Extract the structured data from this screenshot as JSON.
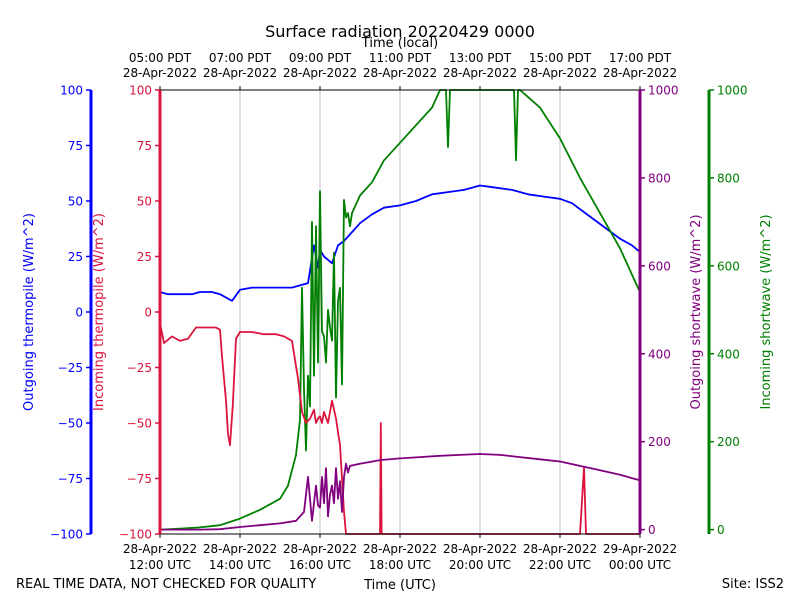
{
  "chart_data": {
    "type": "line",
    "title": "Surface radiation 20220429 0000",
    "top_xlabel": "Time (local)",
    "xlabel": "Time (UTC)",
    "footer_left": "REAL TIME DATA, NOT CHECKED FOR QUALITY",
    "footer_right": "Site: ISS2",
    "x_range_hours_utc": [
      12,
      24
    ],
    "grid_x": true,
    "bottom_ticks": [
      {
        "h": 12,
        "line1": "28-Apr-2022",
        "line2": "12:00 UTC"
      },
      {
        "h": 14,
        "line1": "28-Apr-2022",
        "line2": "14:00 UTC"
      },
      {
        "h": 16,
        "line1": "28-Apr-2022",
        "line2": "16:00 UTC"
      },
      {
        "h": 18,
        "line1": "28-Apr-2022",
        "line2": "18:00 UTC"
      },
      {
        "h": 20,
        "line1": "28-Apr-2022",
        "line2": "20:00 UTC"
      },
      {
        "h": 22,
        "line1": "28-Apr-2022",
        "line2": "22:00 UTC"
      },
      {
        "h": 24,
        "line1": "29-Apr-2022",
        "line2": "00:00 UTC"
      }
    ],
    "top_ticks": [
      {
        "h": 12,
        "line1": "05:00 PDT",
        "line2": "28-Apr-2022"
      },
      {
        "h": 14,
        "line1": "07:00 PDT",
        "line2": "28-Apr-2022"
      },
      {
        "h": 16,
        "line1": "09:00 PDT",
        "line2": "28-Apr-2022"
      },
      {
        "h": 18,
        "line1": "11:00 PDT",
        "line2": "28-Apr-2022"
      },
      {
        "h": 20,
        "line1": "13:00 PDT",
        "line2": "28-Apr-2022"
      },
      {
        "h": 22,
        "line1": "15:00 PDT",
        "line2": "28-Apr-2022"
      },
      {
        "h": 24,
        "line1": "17:00 PDT",
        "line2": "28-Apr-2022"
      }
    ],
    "axes": {
      "out_thermopile": {
        "label": "Outgoing thermopile (W/m^2)",
        "color": "#0000ff",
        "ylim": [
          -100,
          100
        ],
        "ticks": [
          "100",
          "75",
          "50",
          "25",
          "0",
          "−25",
          "−50",
          "−75",
          "−100"
        ]
      },
      "in_thermopile": {
        "label": "Incoming thermopile (W/m^2)",
        "color": "#dc143c",
        "ylim": [
          -100,
          100
        ],
        "ticks": [
          "100",
          "75",
          "50",
          "25",
          "0",
          "−25",
          "−50",
          "−75",
          "−100"
        ]
      },
      "out_shortwave": {
        "label": "Outgoing shortwave (W/m^2)",
        "color": "#800080",
        "ylim": [
          -10,
          1000
        ],
        "ticks": [
          "1000",
          "800",
          "600",
          "400",
          "200",
          "0"
        ]
      },
      "in_shortwave": {
        "label": "Incoming shortwave (W/m^2)",
        "color": "#008000",
        "ylim": [
          -10,
          1000
        ],
        "ticks": [
          "1000",
          "800",
          "600",
          "400",
          "200",
          "0"
        ]
      }
    },
    "series": [
      {
        "name": "Outgoing thermopile",
        "axis": "out_thermopile",
        "color": "#0000ff",
        "x": [
          12.0,
          12.2,
          12.5,
          12.8,
          13.0,
          13.3,
          13.5,
          13.8,
          14.0,
          14.3,
          14.5,
          14.8,
          15.0,
          15.3,
          15.5,
          15.7,
          15.85,
          15.95,
          16.0,
          16.1,
          16.3,
          16.45,
          16.6,
          16.8,
          17.0,
          17.3,
          17.6,
          18.0,
          18.4,
          18.8,
          19.2,
          19.6,
          20.0,
          20.4,
          20.8,
          21.2,
          21.6,
          22.0,
          22.3,
          22.6,
          22.9,
          23.2,
          23.5,
          23.8,
          24.0
        ],
        "y": [
          9,
          8,
          8,
          8,
          9,
          9,
          8,
          5,
          10,
          11,
          11,
          11,
          11,
          11,
          12,
          13,
          30,
          20,
          28,
          25,
          22,
          30,
          32,
          36,
          40,
          44,
          47,
          48,
          50,
          53,
          54,
          55,
          57,
          56,
          55,
          53,
          52,
          51,
          49,
          45,
          41,
          37,
          33,
          30,
          27
        ]
      },
      {
        "name": "Incoming thermopile",
        "axis": "in_thermopile",
        "color": "#dc143c",
        "x": [
          12.0,
          12.1,
          12.3,
          12.5,
          12.7,
          12.9,
          13.0,
          13.2,
          13.4,
          13.5,
          13.55,
          13.65,
          13.7,
          13.75,
          13.82,
          13.9,
          14.0,
          14.3,
          14.6,
          14.9,
          15.1,
          15.3,
          15.45,
          15.55,
          15.65,
          15.75,
          15.85,
          15.9,
          15.95,
          16.0,
          16.05,
          16.1,
          16.2,
          16.3,
          16.4,
          16.5,
          16.6,
          16.65,
          16.75,
          17.0,
          17.3,
          17.5,
          17.52,
          17.54,
          17.6,
          17.8,
          18.0,
          18.5,
          19.0,
          19.5,
          20.0,
          20.5,
          21.0,
          21.5,
          22.0,
          22.5,
          22.6,
          22.65,
          22.7,
          23.0,
          23.5,
          24.0
        ],
        "y": [
          -5,
          -14,
          -11,
          -13,
          -12,
          -7,
          -7,
          -7,
          -7,
          -8,
          -20,
          -40,
          -55,
          -60,
          -42,
          -12,
          -9,
          -9,
          -10,
          -10,
          -11,
          -13,
          -30,
          -45,
          -50,
          -48,
          -44,
          -50,
          -48,
          -47,
          -50,
          -45,
          -50,
          -40,
          -48,
          -60,
          -90,
          -100,
          -100,
          -100,
          -100,
          -100,
          -50,
          -100,
          -100,
          -100,
          -100,
          -100,
          -100,
          -100,
          -100,
          -100,
          -100,
          -100,
          -100,
          -100,
          -70,
          -100,
          -100,
          -100,
          -100,
          -100
        ]
      },
      {
        "name": "Outgoing shortwave",
        "axis": "out_shortwave",
        "color": "#800080",
        "x": [
          12.0,
          12.5,
          13.0,
          13.5,
          14.0,
          14.5,
          15.0,
          15.4,
          15.6,
          15.7,
          15.8,
          15.85,
          15.9,
          15.95,
          16.0,
          16.05,
          16.1,
          16.15,
          16.2,
          16.25,
          16.3,
          16.35,
          16.4,
          16.45,
          16.5,
          16.55,
          16.6,
          16.65,
          16.7,
          16.75,
          17.0,
          17.5,
          18.0,
          18.5,
          19.0,
          19.5,
          20.0,
          20.5,
          21.0,
          21.5,
          22.0,
          22.5,
          23.0,
          23.5,
          24.0
        ],
        "y": [
          0,
          0,
          0,
          1,
          6,
          10,
          14,
          20,
          40,
          120,
          20,
          60,
          100,
          55,
          50,
          120,
          60,
          140,
          30,
          80,
          100,
          60,
          140,
          70,
          110,
          40,
          120,
          150,
          130,
          145,
          150,
          158,
          162,
          165,
          168,
          170,
          172,
          170,
          165,
          160,
          155,
          145,
          135,
          125,
          112
        ]
      },
      {
        "name": "Incoming shortwave",
        "axis": "in_shortwave",
        "color": "#008000",
        "x": [
          12.0,
          12.5,
          13.0,
          13.5,
          14.0,
          14.5,
          15.0,
          15.2,
          15.4,
          15.5,
          15.55,
          15.6,
          15.65,
          15.7,
          15.75,
          15.8,
          15.85,
          15.9,
          15.95,
          16.0,
          16.05,
          16.1,
          16.15,
          16.2,
          16.25,
          16.3,
          16.35,
          16.4,
          16.45,
          16.5,
          16.55,
          16.6,
          16.65,
          16.7,
          16.75,
          16.8,
          17.0,
          17.3,
          17.6,
          18.0,
          18.4,
          18.8,
          19.0,
          19.15,
          19.2,
          19.25,
          19.5,
          20.0,
          20.5,
          20.85,
          20.9,
          20.95,
          21.0,
          21.5,
          22.0,
          22.5,
          23.0,
          23.5,
          24.0
        ],
        "y": [
          0,
          2,
          5,
          10,
          25,
          45,
          70,
          100,
          170,
          250,
          550,
          320,
          180,
          350,
          280,
          700,
          350,
          690,
          380,
          770,
          450,
          440,
          380,
          500,
          460,
          430,
          630,
          300,
          520,
          550,
          330,
          750,
          710,
          720,
          690,
          720,
          760,
          790,
          840,
          880,
          920,
          960,
          1000,
          1000,
          870,
          1000,
          1000,
          1000,
          1000,
          1000,
          840,
          1000,
          1000,
          960,
          890,
          800,
          720,
          640,
          540
        ]
      }
    ]
  }
}
